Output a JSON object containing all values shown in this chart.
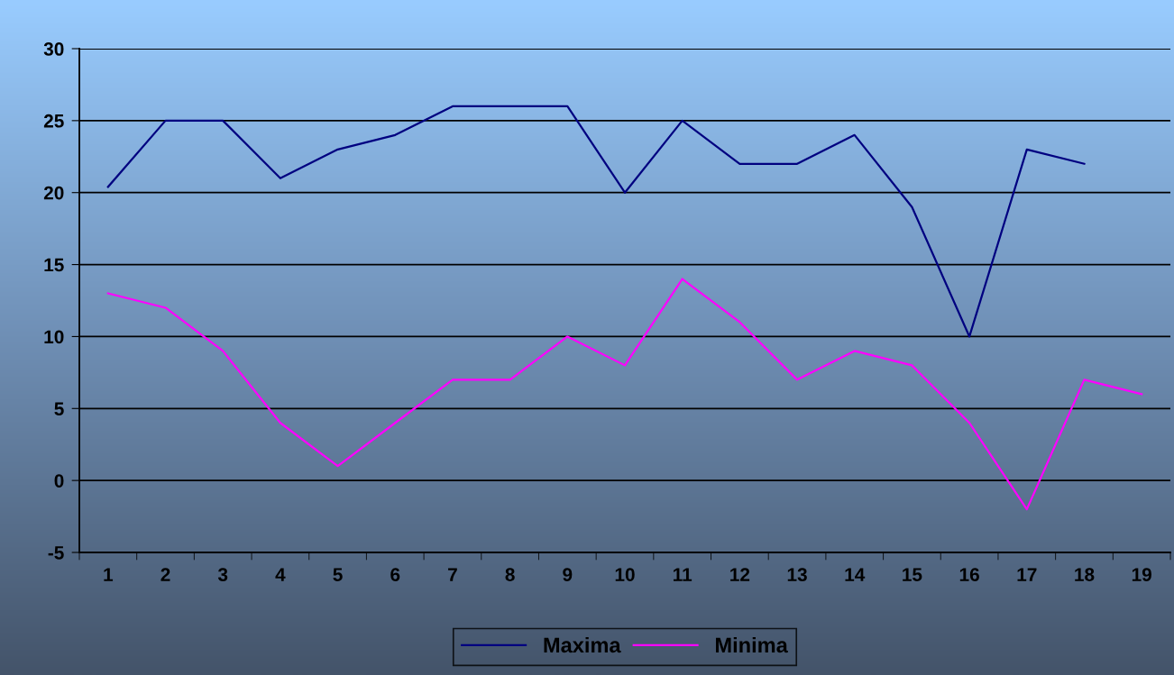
{
  "chart_data": {
    "type": "line",
    "categories": [
      "1",
      "2",
      "3",
      "4",
      "5",
      "6",
      "7",
      "8",
      "9",
      "10",
      "11",
      "12",
      "13",
      "14",
      "15",
      "16",
      "17",
      "18",
      "19"
    ],
    "series": [
      {
        "name": "Maxima",
        "color": "#000080",
        "values": [
          20.4,
          25,
          25,
          21,
          23,
          24,
          26,
          26,
          26,
          20,
          25,
          22,
          22,
          24,
          19,
          10,
          23,
          22,
          null
        ]
      },
      {
        "name": "Minima",
        "color": "#ff00ff",
        "values": [
          13,
          12,
          9,
          4,
          1,
          4,
          7,
          7,
          10,
          8,
          14,
          11,
          7,
          9,
          8,
          4,
          -2,
          7,
          6
        ]
      }
    ],
    "ylim": [
      -5,
      30
    ],
    "yticks": [
      -5,
      0,
      5,
      10,
      15,
      20,
      25,
      30
    ],
    "grid": "y",
    "legend": "bottom",
    "marker": "none",
    "line_style": "solid"
  }
}
